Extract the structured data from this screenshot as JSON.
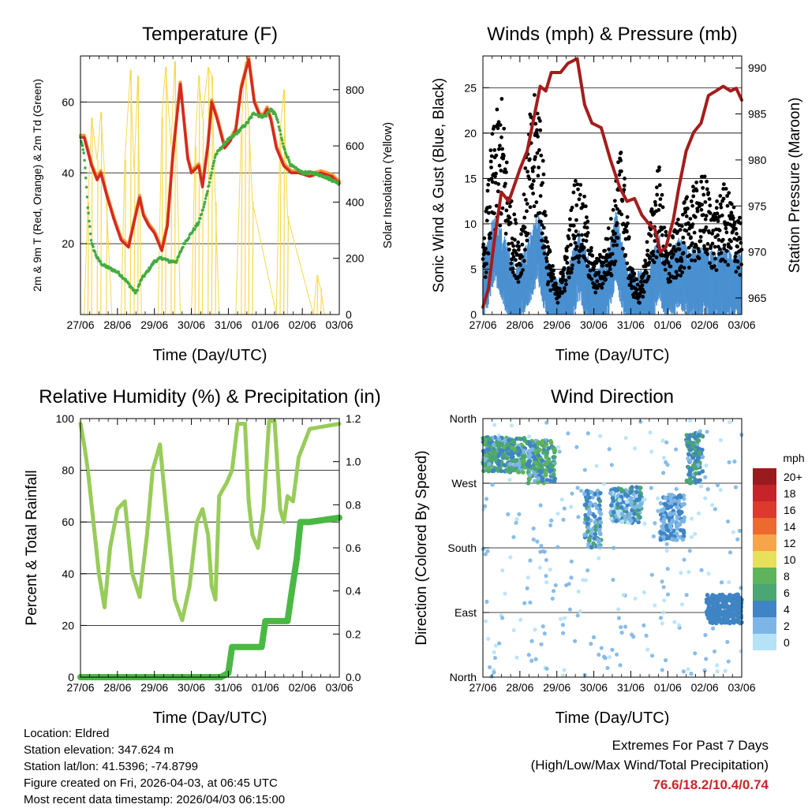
{
  "figure": {
    "x_ticks": [
      "27/06",
      "28/06",
      "29/06",
      "30/06",
      "31/06",
      "01/06",
      "02/06",
      "03/06"
    ],
    "x_label": "Time (Day/UTC)"
  },
  "colors": {
    "temp_red": "#d42a20",
    "temp_orange": "#f39a3c",
    "dewpoint_green": "#45ac3f",
    "solar_yellow": "#f7d94c",
    "gust_black": "#000000",
    "wind_blue": "#4a90d0",
    "pressure_maroon": "#a51c1c",
    "rh_lightgreen": "#98cc5a",
    "precip_green": "#4ab944",
    "extremes_red": "#c8262b"
  },
  "chart_data": [
    {
      "type": "line",
      "id": "temperature",
      "title": "Temperature (F)",
      "xlabel": "Time (Day/UTC)",
      "ylabel_left": "2m & 9m T (Red, Orange) & 2m Td (Green)",
      "ylabel_right": "Solar Insolation (Yellow)",
      "ylim_left": [
        0,
        73
      ],
      "yticks_left": [
        "20",
        "40",
        "60"
      ],
      "yticks_left_values": [
        20,
        40,
        60
      ],
      "ylim_right": [
        0,
        920
      ],
      "yticks_right": [
        "0",
        "200",
        "400",
        "600",
        "800"
      ],
      "yticks_right_values": [
        0,
        200,
        400,
        600,
        800
      ],
      "x_days": [
        0,
        7
      ],
      "series": [
        {
          "name": "2m T",
          "color": "#d42a20",
          "x": [
            0,
            0.1,
            0.3,
            0.45,
            0.55,
            0.7,
            0.9,
            1.1,
            1.3,
            1.45,
            1.6,
            1.7,
            1.85,
            2.0,
            2.2,
            2.35,
            2.5,
            2.7,
            2.9,
            3.0,
            3.2,
            3.3,
            3.45,
            3.55,
            3.7,
            3.9,
            4.05,
            4.2,
            4.35,
            4.45,
            4.55,
            4.7,
            4.85,
            4.95,
            5.05,
            5.15,
            5.3,
            5.5,
            5.7,
            5.9,
            6.2,
            6.5,
            6.8,
            7.0
          ],
          "values": [
            50,
            50,
            42,
            38,
            40,
            34,
            27,
            21,
            19,
            26,
            33,
            28,
            25,
            23,
            18,
            25,
            45,
            65,
            44,
            40,
            42,
            36,
            48,
            60,
            55,
            47,
            49,
            52,
            64,
            68,
            72,
            60,
            56,
            56,
            58,
            55,
            47,
            42,
            40,
            40,
            39,
            40,
            39,
            37
          ]
        },
        {
          "name": "2m Td",
          "color": "#45ac3f",
          "x": [
            0,
            0.1,
            0.2,
            0.3,
            0.45,
            0.6,
            0.8,
            1.0,
            1.2,
            1.35,
            1.5,
            1.65,
            1.8,
            2.0,
            2.2,
            2.4,
            2.6,
            2.8,
            3.0,
            3.2,
            3.35,
            3.5,
            3.65,
            3.8,
            3.95,
            4.1,
            4.3,
            4.5,
            4.7,
            4.85,
            5.0,
            5.15,
            5.3,
            5.5,
            5.7,
            6.0,
            6.3,
            6.6,
            7.0
          ],
          "values": [
            50,
            45,
            30,
            20,
            16,
            14,
            13,
            12,
            10,
            8,
            6,
            10,
            12,
            15,
            16,
            15,
            15,
            20,
            23,
            26,
            31,
            38,
            45,
            47,
            49,
            50,
            52,
            54,
            57,
            56,
            56,
            58,
            56,
            47,
            42,
            40,
            40,
            39,
            37
          ]
        },
        {
          "name": "Solar Insolation",
          "color": "#f7d94c",
          "axis": "right",
          "x": [
            0.1,
            0.2,
            0.3,
            0.45,
            0.55,
            0.7,
            0.85,
            1.1,
            1.2,
            1.35,
            1.45,
            1.55,
            1.65,
            2.1,
            2.2,
            2.3,
            2.45,
            2.55,
            2.7,
            3.0,
            3.1,
            3.2,
            3.3,
            3.45,
            3.55,
            3.65,
            3.75,
            4.2,
            4.35,
            4.45,
            4.55,
            4.65,
            5.3,
            5.4,
            5.5,
            5.6,
            6.3,
            6.4,
            6.5,
            6.6
          ],
          "values": [
            0,
            400,
            700,
            550,
            720,
            400,
            0,
            0,
            550,
            870,
            500,
            850,
            0,
            0,
            700,
            880,
            600,
            900,
            0,
            0,
            600,
            850,
            700,
            880,
            850,
            400,
            0,
            0,
            650,
            900,
            700,
            400,
            0,
            650,
            800,
            350,
            0,
            140,
            90,
            0
          ]
        }
      ]
    },
    {
      "type": "scatter",
      "id": "winds",
      "title": "Winds (mph) & Pressure (mb)",
      "xlabel": "Time (Day/UTC)",
      "ylabel_left": "Sonic Wind & Gust (Blue, Black)",
      "ylabel_right": "Station Pressure (Maroon)",
      "ylim_left": [
        0,
        28.5
      ],
      "yticks_left": [
        "0",
        "5",
        "10",
        "15",
        "20",
        "25"
      ],
      "yticks_left_values": [
        0,
        5,
        10,
        15,
        20,
        25
      ],
      "ylim_right": [
        963.2,
        991.3
      ],
      "yticks_right": [
        "965",
        "970",
        "975",
        "980",
        "985",
        "990"
      ],
      "yticks_right_values": [
        965,
        970,
        975,
        980,
        985,
        990
      ],
      "x_days": [
        0,
        7
      ],
      "series": [
        {
          "name": "Sonic Wind",
          "color": "#4a90d0",
          "x": [
            0.0,
            0.3,
            0.6,
            0.9,
            1.2,
            1.5,
            1.75,
            2.0,
            2.3,
            2.6,
            2.85,
            3.1,
            3.4,
            3.6,
            3.9,
            4.2,
            4.5,
            4.75,
            5.0,
            5.3,
            5.6,
            5.9,
            6.2,
            6.5,
            6.8,
            7.0
          ],
          "values": [
            3,
            8,
            5,
            2,
            5,
            8,
            3,
            0.5,
            2,
            6,
            3,
            2,
            4,
            8,
            2,
            1.5,
            2,
            6,
            3,
            5,
            4,
            4,
            4,
            4,
            3.5,
            3.5
          ]
        },
        {
          "name": "Gust",
          "color": "#000000",
          "x": [
            0.0,
            0.25,
            0.5,
            0.75,
            1.0,
            1.25,
            1.5,
            1.75,
            2.0,
            2.25,
            2.5,
            2.75,
            3.0,
            3.25,
            3.5,
            3.75,
            4.0,
            4.25,
            4.5,
            4.75,
            5.0,
            5.25,
            5.5,
            5.75,
            6.0,
            6.25,
            6.5,
            6.75,
            7.0
          ],
          "values": [
            5,
            14,
            17,
            9,
            6,
            15,
            18,
            6,
            2,
            5,
            11,
            9,
            4,
            5,
            8,
            14,
            4,
            2,
            7,
            12,
            5,
            7,
            9,
            10,
            11,
            8,
            10,
            9,
            7
          ]
        },
        {
          "name": "Station Pressure",
          "color": "#a51c1c",
          "axis": "right",
          "x": [
            0.0,
            0.15,
            0.3,
            0.5,
            0.7,
            1.0,
            1.2,
            1.4,
            1.55,
            1.7,
            1.85,
            2.1,
            2.3,
            2.55,
            2.75,
            2.95,
            3.2,
            3.45,
            3.7,
            3.9,
            4.1,
            4.3,
            4.5,
            4.65,
            4.8,
            4.95,
            5.05,
            5.15,
            5.3,
            5.5,
            5.7,
            5.9,
            6.1,
            6.3,
            6.5,
            6.7,
            6.85,
            7.0
          ],
          "values": [
            964,
            966,
            971,
            976.5,
            975.5,
            979,
            981,
            985,
            988,
            987.5,
            989.5,
            989.5,
            990.5,
            991,
            986,
            984,
            983.5,
            980,
            977,
            975.5,
            975.8,
            974,
            973,
            972.5,
            970,
            970.5,
            972,
            973.5,
            977,
            981,
            983,
            984,
            987,
            987.5,
            988,
            987.5,
            987.8,
            986.5
          ]
        }
      ]
    },
    {
      "type": "line",
      "id": "humidity",
      "title": "Relative Humidity (%) & Precipitation (in)",
      "xlabel": "Time (Day/UTC)",
      "ylabel_left": "Percent & Total Rainfall",
      "ylim_left": [
        0,
        100
      ],
      "yticks_left": [
        "0",
        "20",
        "40",
        "60",
        "80",
        "100"
      ],
      "yticks_left_values": [
        0,
        20,
        40,
        60,
        80,
        100
      ],
      "ylim_right": [
        0,
        1.2
      ],
      "yticks_right": [
        "0.0",
        "0.2",
        "0.4",
        "0.6",
        "0.8",
        "1.0",
        "1.2"
      ],
      "yticks_right_values": [
        0,
        0.2,
        0.4,
        0.6,
        0.8,
        1.0,
        1.2
      ],
      "x_days": [
        0,
        7
      ],
      "series": [
        {
          "name": "Relative Humidity",
          "color": "#98cc5a",
          "x": [
            0.0,
            0.1,
            0.2,
            0.35,
            0.5,
            0.65,
            0.8,
            1.0,
            1.2,
            1.4,
            1.6,
            1.8,
            1.95,
            2.15,
            2.35,
            2.55,
            2.75,
            2.95,
            3.15,
            3.3,
            3.45,
            3.55,
            3.65,
            3.75,
            3.95,
            4.1,
            4.25,
            4.45,
            4.55,
            4.65,
            4.8,
            4.95,
            5.1,
            5.25,
            5.4,
            5.5,
            5.6,
            5.75,
            5.9,
            6.2,
            6.6,
            7.0
          ],
          "values": [
            98,
            90,
            80,
            60,
            40,
            27,
            50,
            65,
            68,
            40,
            31,
            55,
            80,
            90,
            60,
            30,
            22,
            35,
            60,
            65,
            55,
            35,
            30,
            70,
            75,
            80,
            98,
            98,
            68,
            55,
            50,
            65,
            99,
            99,
            65,
            60,
            70,
            68,
            85,
            96,
            97,
            98
          ]
        },
        {
          "name": "Total Precipitation",
          "color": "#4ab944",
          "axis": "right",
          "x": [
            0.0,
            3.8,
            4.0,
            4.1,
            4.2,
            4.9,
            5.0,
            5.6,
            5.7,
            5.85,
            5.95,
            6.2,
            6.6,
            7.0
          ],
          "values": [
            0.0,
            0.0,
            0.02,
            0.14,
            0.14,
            0.14,
            0.26,
            0.26,
            0.38,
            0.55,
            0.72,
            0.72,
            0.73,
            0.74
          ]
        }
      ]
    },
    {
      "type": "scatter",
      "id": "wind_direction",
      "title": "Wind Direction",
      "xlabel": "Time (Day/UTC)",
      "ylabel_left": "Direction (Colored By Speed)",
      "yticks_left": [
        "North",
        "East",
        "South",
        "West",
        "North"
      ],
      "yticks_left_values": [
        0,
        90,
        180,
        270,
        360
      ],
      "ylim_left": [
        0,
        360
      ],
      "x_days": [
        0,
        7
      ],
      "clusters": [
        {
          "x0": 0.0,
          "x1": 1.15,
          "dir": [
            285,
            335
          ],
          "speed": [
            2,
            8
          ]
        },
        {
          "x0": 1.2,
          "x1": 1.95,
          "dir": [
            270,
            330
          ],
          "speed": [
            2,
            9
          ]
        },
        {
          "x0": 2.75,
          "x1": 3.2,
          "dir": [
            180,
            260
          ],
          "speed": [
            1,
            6
          ]
        },
        {
          "x0": 3.45,
          "x1": 4.3,
          "dir": [
            215,
            265
          ],
          "speed": [
            0,
            6
          ]
        },
        {
          "x0": 4.8,
          "x1": 5.45,
          "dir": [
            190,
            255
          ],
          "speed": [
            1,
            5
          ]
        },
        {
          "x0": 5.5,
          "x1": 5.95,
          "dir": [
            270,
            340
          ],
          "speed": [
            2,
            7
          ]
        },
        {
          "x0": 6.05,
          "x1": 7.0,
          "dir": [
            75,
            115
          ],
          "speed": [
            3,
            5
          ]
        }
      ],
      "colorbar": {
        "title": "mph",
        "labels": [
          "20+",
          "18",
          "16",
          "14",
          "12",
          "10",
          "8",
          "6",
          "4",
          "2",
          "0"
        ],
        "colors": [
          "#9a1b1e",
          "#c3252a",
          "#dc3a2c",
          "#ec6a2f",
          "#f7a54a",
          "#e8e05a",
          "#5fb35c",
          "#4aa672",
          "#3f84c4",
          "#7db6e6",
          "#b6e2f7"
        ]
      }
    }
  ],
  "station_info": {
    "location": "Location: Eldred",
    "elevation": "Station elevation: 347.624 m",
    "latlon": "Station lat/lon: 41.5396; -74.8799",
    "created": "Figure created on Fri, 2026-04-03, at 06:45 UTC",
    "recent": "Most recent data timestamp: 2026/04/03 06:15:00"
  },
  "extremes": {
    "title": "Extremes For Past 7 Days",
    "subtitle": "(High/Low/Max Wind/Total Precipitation)",
    "values": "76.6/18.2/10.4/0.74"
  }
}
